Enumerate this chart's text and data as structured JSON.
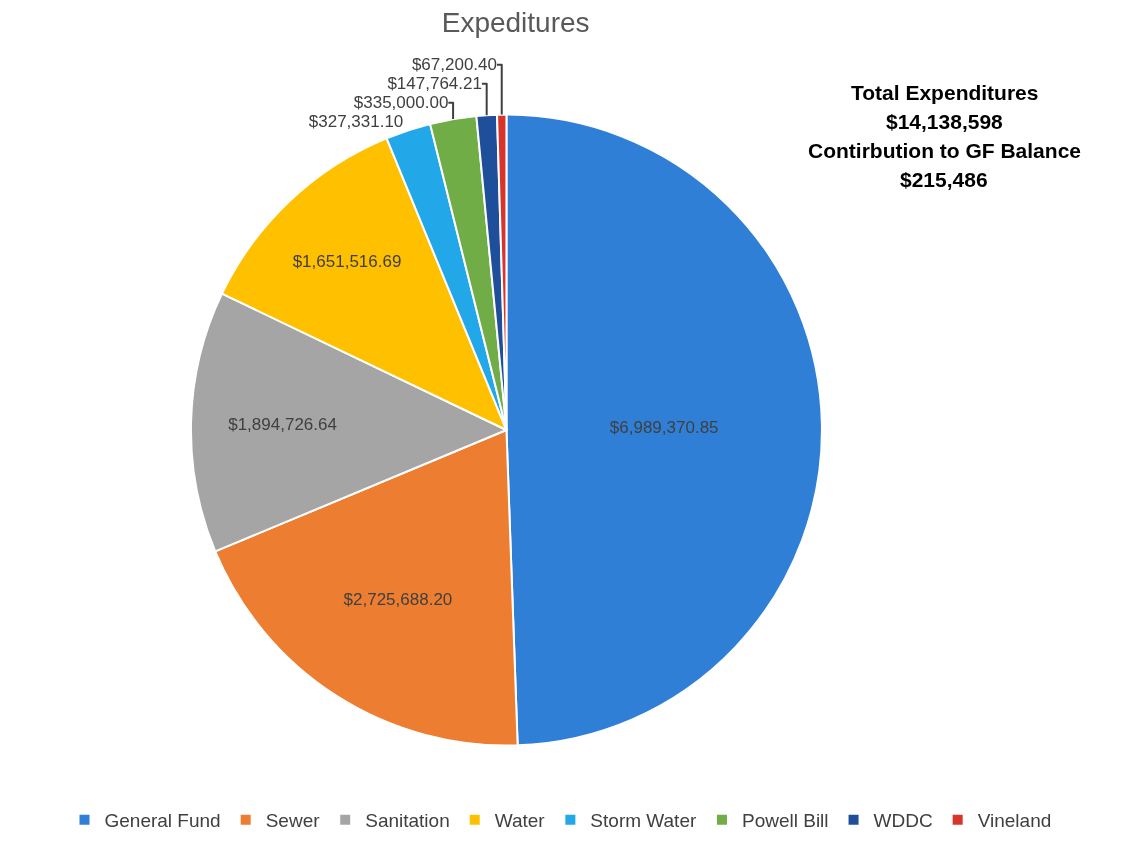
{
  "chart_data": {
    "type": "pie",
    "title": "Expeditures",
    "categories": [
      "General Fund",
      "Sewer",
      "Sanitation",
      "Water",
      "Storm Water",
      "Powell Bill",
      "WDDC",
      "Vineland"
    ],
    "values": [
      6989370.85,
      2725688.2,
      1894726.64,
      1651516.69,
      327331.1,
      335000.0,
      147764.21,
      67200.4
    ],
    "value_labels": [
      "$6,989,370.85",
      "$2,725,688.20",
      "$1,894,726.64",
      "$1,651,516.69",
      "$327,331.10",
      "$335,000.00",
      "$147,764.21",
      "$67,200.40"
    ],
    "colors": [
      "#2f7fd6",
      "#ed7d31",
      "#a5a5a5",
      "#ffc000",
      "#22a7e8",
      "#70ad47",
      "#1f4e9a",
      "#d9342b"
    ],
    "annotations": [
      "Total Expenditures",
      "$14,138,598",
      "Contirbution to GF Balance",
      "$215,486"
    ],
    "legend": "bottom"
  }
}
